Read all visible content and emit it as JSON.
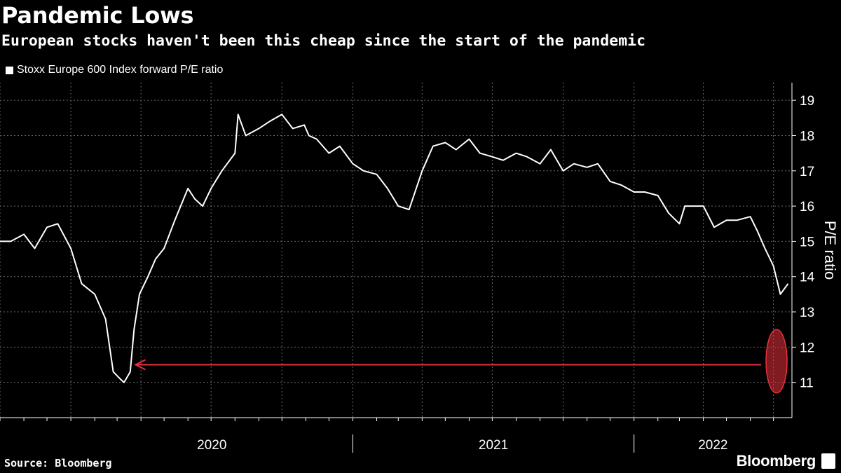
{
  "header": {
    "title": "Pandemic Lows",
    "subtitle": "European stocks haven't been this cheap since the start of the pandemic"
  },
  "legend": {
    "label": "Stoxx Europe 600 Index forward P/E ratio",
    "swatch_color": "#ffffff"
  },
  "footer": {
    "source": "Source: Bloomberg",
    "brand": "Bloomberg",
    "brand_icon": "bloomberg-terminal-icon"
  },
  "colors": {
    "background": "#000000",
    "line": "#ffffff",
    "highlight": "#e8323c"
  },
  "chart_data": {
    "type": "line",
    "title": "Pandemic Lows",
    "subtitle": "European stocks haven't been this cheap since the start of the pandemic",
    "ylabel": "P/E ratio",
    "ylim": [
      10,
      19.5
    ],
    "yticks": [
      11,
      12,
      13,
      14,
      15,
      16,
      17,
      18,
      19
    ],
    "xlim": [
      "2019-10-01",
      "2022-07-25"
    ],
    "xtick_labels": [
      "2020",
      "2021",
      "2022"
    ],
    "grid": true,
    "series": [
      {
        "name": "Stoxx Europe 600 Index forward P/E ratio",
        "x": [
          "2019-10-01",
          "2019-10-15",
          "2019-11-01",
          "2019-11-15",
          "2019-12-01",
          "2019-12-15",
          "2020-01-01",
          "2020-01-15",
          "2020-02-01",
          "2020-02-15",
          "2020-02-25",
          "2020-03-05",
          "2020-03-10",
          "2020-03-18",
          "2020-03-23",
          "2020-03-30",
          "2020-04-10",
          "2020-04-20",
          "2020-05-01",
          "2020-05-15",
          "2020-06-01",
          "2020-06-10",
          "2020-06-20",
          "2020-07-01",
          "2020-07-15",
          "2020-08-01",
          "2020-08-05",
          "2020-08-15",
          "2020-09-01",
          "2020-09-15",
          "2020-10-01",
          "2020-10-15",
          "2020-10-30",
          "2020-11-05",
          "2020-11-15",
          "2020-12-01",
          "2020-12-15",
          "2021-01-01",
          "2021-01-15",
          "2021-02-01",
          "2021-02-15",
          "2021-03-01",
          "2021-03-15",
          "2021-04-01",
          "2021-04-15",
          "2021-05-01",
          "2021-05-15",
          "2021-06-01",
          "2021-06-15",
          "2021-07-01",
          "2021-07-15",
          "2021-08-01",
          "2021-08-15",
          "2021-09-01",
          "2021-09-15",
          "2021-10-01",
          "2021-10-15",
          "2021-11-01",
          "2021-11-15",
          "2021-12-01",
          "2021-12-15",
          "2022-01-01",
          "2022-01-15",
          "2022-02-01",
          "2022-02-15",
          "2022-03-01",
          "2022-03-08",
          "2022-03-20",
          "2022-04-01",
          "2022-04-15",
          "2022-05-01",
          "2022-05-15",
          "2022-06-01",
          "2022-06-10",
          "2022-06-20",
          "2022-07-01",
          "2022-07-10",
          "2022-07-20"
        ],
        "values": [
          15.0,
          15.0,
          15.2,
          14.8,
          15.4,
          15.5,
          14.8,
          13.8,
          13.5,
          12.8,
          11.3,
          11.1,
          11.0,
          11.3,
          12.5,
          13.5,
          14.0,
          14.5,
          14.8,
          15.6,
          16.5,
          16.2,
          16.0,
          16.5,
          17.0,
          17.5,
          18.6,
          18.0,
          18.2,
          18.4,
          18.6,
          18.2,
          18.3,
          18.0,
          17.9,
          17.5,
          17.7,
          17.2,
          17.0,
          16.9,
          16.5,
          16.0,
          15.9,
          17.0,
          17.7,
          17.8,
          17.6,
          17.9,
          17.5,
          17.4,
          17.3,
          17.5,
          17.4,
          17.2,
          17.6,
          17.0,
          17.2,
          17.1,
          17.2,
          16.7,
          16.6,
          16.4,
          16.4,
          16.3,
          15.8,
          15.5,
          16.0,
          16.0,
          16.0,
          15.4,
          15.6,
          15.6,
          15.7,
          15.3,
          14.8,
          14.3,
          13.5,
          13.8
        ]
      }
    ],
    "annotations": [
      {
        "type": "arrow",
        "label": "",
        "from_x": "2022-06-15",
        "to_x": "2020-03-25",
        "y": 11.5,
        "color": "#e8323c"
      },
      {
        "type": "ellipse",
        "label": "",
        "center_x": "2022-07-05",
        "y_range": [
          10.7,
          12.5
        ],
        "color": "#e8323c"
      }
    ]
  }
}
